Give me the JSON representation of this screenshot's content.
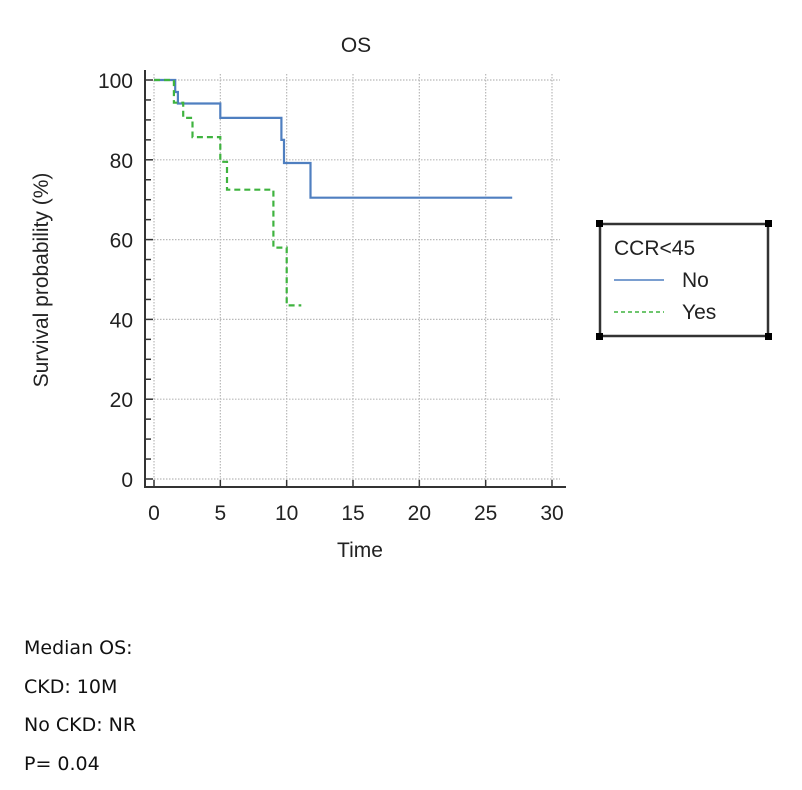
{
  "chart_data": {
    "type": "line",
    "subtype": "kaplan-meier step",
    "title": "OS",
    "xlabel": "Time",
    "ylabel": "Survival probability (%)",
    "xlim": [
      0,
      30
    ],
    "ylim": [
      0,
      100
    ],
    "xticks": [
      "0",
      "5",
      "10",
      "15",
      "20",
      "25",
      "30"
    ],
    "yticks": [
      "0",
      "20",
      "40",
      "60",
      "80",
      "100"
    ],
    "grid": true,
    "legend": {
      "title": "CCR<45",
      "placement": "right"
    },
    "series": [
      {
        "name": "No",
        "color": "#4f7fc0",
        "style": "solid",
        "points": [
          [
            0,
            100
          ],
          [
            1.6,
            100
          ],
          [
            1.6,
            97
          ],
          [
            1.8,
            97
          ],
          [
            1.8,
            94.1
          ],
          [
            5,
            94.1
          ],
          [
            5,
            90.5
          ],
          [
            9.6,
            90.5
          ],
          [
            9.6,
            85
          ],
          [
            9.8,
            85
          ],
          [
            9.8,
            79.2
          ],
          [
            11.8,
            79.2
          ],
          [
            11.8,
            70.5
          ],
          [
            27,
            70.5
          ]
        ]
      },
      {
        "name": "Yes",
        "color": "#3fb33f",
        "style": "dashed",
        "points": [
          [
            0,
            100
          ],
          [
            1.5,
            100
          ],
          [
            1.5,
            94.3
          ],
          [
            2.2,
            94.3
          ],
          [
            2.2,
            90.5
          ],
          [
            2.9,
            90.5
          ],
          [
            2.9,
            85.7
          ],
          [
            5,
            85.7
          ],
          [
            5,
            79.5
          ],
          [
            5.5,
            79.5
          ],
          [
            5.5,
            72.5
          ],
          [
            9,
            72.5
          ],
          [
            9,
            58
          ],
          [
            10,
            58
          ],
          [
            10,
            43.5
          ],
          [
            11.1,
            43.5
          ]
        ]
      }
    ]
  },
  "notes": {
    "line1": "Median OS:",
    "line2": "CKD: 10M",
    "line3": "No CKD: NR",
    "line4": "P= 0.04"
  }
}
